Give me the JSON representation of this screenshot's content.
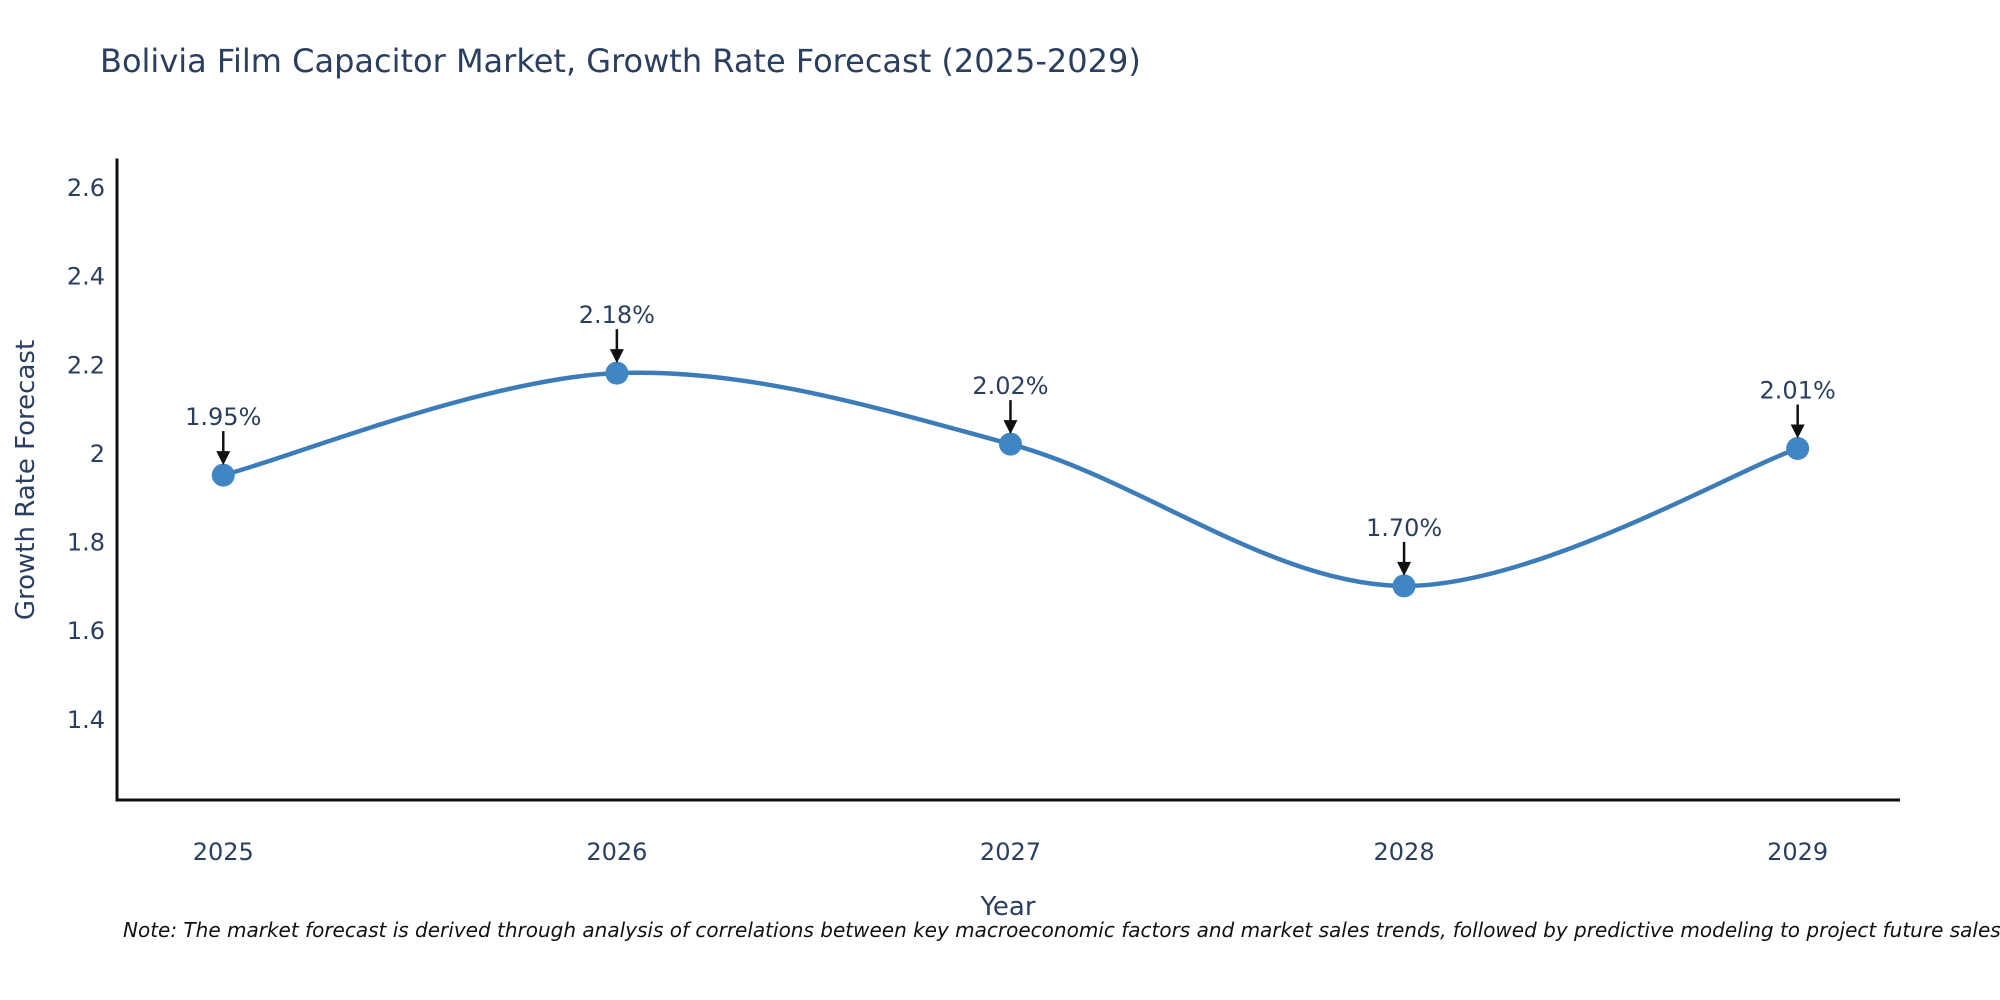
{
  "page": {
    "note": "Note: The market forecast is derived through analysis of correlations between key macroeconomic factors and market sales trends, followed by predictive modeling to project future sales"
  },
  "chart_data": {
    "type": "line",
    "title": "Bolivia Film Capacitor Market, Growth Rate Forecast (2025-2029)",
    "xlabel": "Year",
    "ylabel": "Growth Rate Forecast",
    "x": [
      2025,
      2026,
      2027,
      2028,
      2029
    ],
    "x_tick_labels": [
      "2025",
      "2026",
      "2027",
      "2028",
      "2029"
    ],
    "series": [
      {
        "name": "Growth Rate Forecast",
        "values": [
          1.95,
          2.18,
          2.02,
          1.7,
          2.01
        ]
      }
    ],
    "point_labels": [
      "1.95%",
      "2.18%",
      "2.02%",
      "1.70%",
      "2.01%"
    ],
    "y_ticks": [
      2.6,
      2.4,
      2.2,
      2,
      1.8,
      1.6,
      1.4
    ],
    "y_tick_labels": [
      "2.6",
      "2.4",
      "2.2",
      "2",
      "1.8",
      "1.6",
      "1.4"
    ],
    "xlim": [
      2024.73,
      2029.26
    ],
    "ylim": [
      1.217,
      2.661
    ],
    "grid": false,
    "legend": "none",
    "line_shape": "spline",
    "colors": {
      "line": "#3c7cb8",
      "marker": "#4186c4",
      "axis": "#111111",
      "text": "#2a3f5f",
      "annotation": "#2a3f5f",
      "arrow": "#111111",
      "note": "#111111"
    }
  }
}
